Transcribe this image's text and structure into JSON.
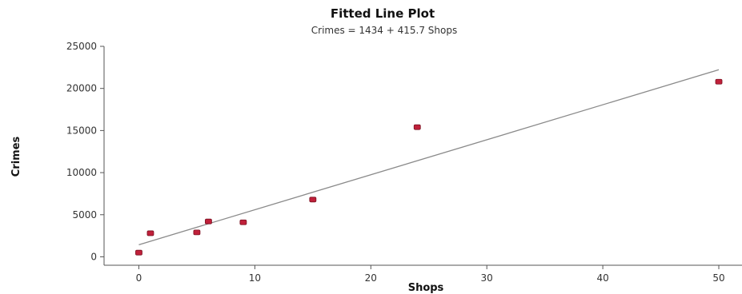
{
  "chart_data": {
    "type": "scatter",
    "title": "Fitted Line Plot",
    "subtitle": "Crimes =   1434 + 415.7 Shops",
    "xlabel": "Shops",
    "ylabel": "Crimes",
    "xlim": [
      -3,
      52
    ],
    "ylim": [
      -1000,
      25000
    ],
    "xticks": [
      0,
      10,
      20,
      30,
      40,
      50
    ],
    "yticks": [
      0,
      5000,
      10000,
      15000,
      20000,
      25000
    ],
    "xtick_labels": [
      "0",
      "10",
      "20",
      "30",
      "40",
      "50"
    ],
    "ytick_labels": [
      "0",
      "5000",
      "10000",
      "15000",
      "20000",
      "25000"
    ],
    "points": [
      {
        "x": 0,
        "y": 500
      },
      {
        "x": 1,
        "y": 2800
      },
      {
        "x": 5,
        "y": 2900
      },
      {
        "x": 6,
        "y": 4200
      },
      {
        "x": 9,
        "y": 4100
      },
      {
        "x": 15,
        "y": 6800
      },
      {
        "x": 24,
        "y": 15400
      },
      {
        "x": 50,
        "y": 20800
      }
    ],
    "fit": {
      "intercept": 1434,
      "slope": 415.7,
      "x_range": [
        0,
        50
      ]
    },
    "point_color": "#c0203a",
    "line_color": "#8a8a8a",
    "grid": false
  }
}
